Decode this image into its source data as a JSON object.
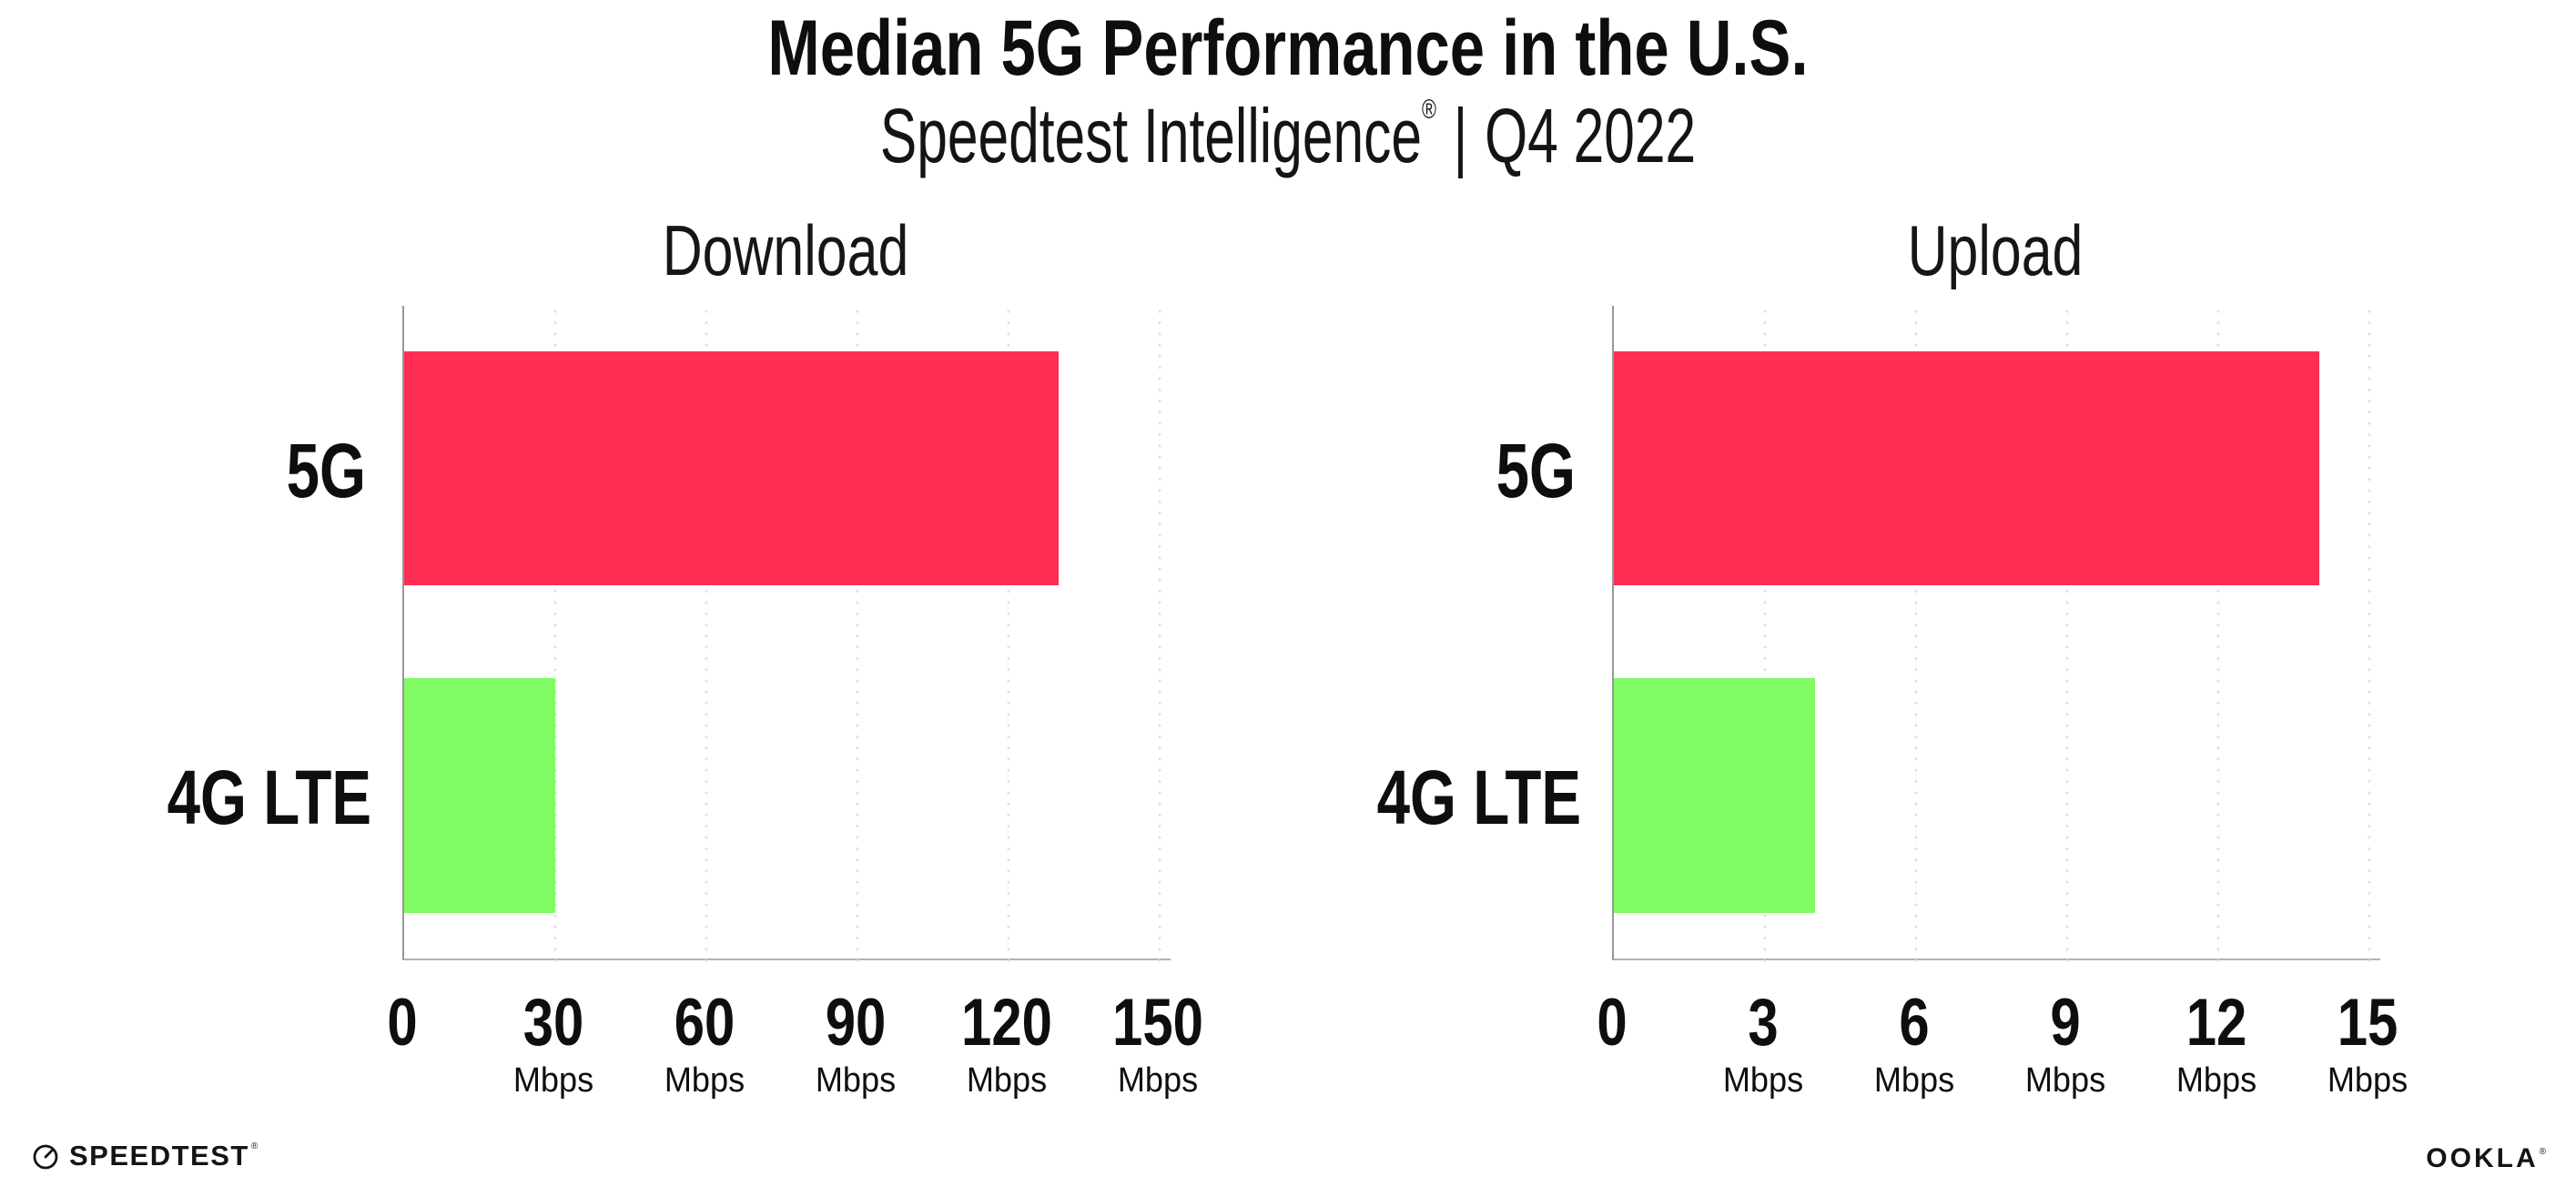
{
  "page": {
    "title": "Median 5G Performance in the U.S.",
    "subtitle": {
      "brand": "Speedtest Intelligence",
      "reg": "®",
      "separator": "|",
      "period": "Q4 2022"
    }
  },
  "colors": {
    "bar_5g": "#ff2e55",
    "bar_4g_lte": "#80fb64",
    "grid_dot": "#dedee9",
    "y_axis_line": "#97979d",
    "x_axis_line": "#b1b1b6",
    "text": "#0e0e0e"
  },
  "chart_data": [
    {
      "type": "bar",
      "orientation": "horizontal",
      "title": "Download",
      "categories": [
        "5G",
        "4G LTE"
      ],
      "values": [
        130,
        30
      ],
      "unit": "Mbps",
      "xlim": [
        0,
        150
      ],
      "xticks": [
        0,
        30,
        60,
        90,
        120,
        150
      ],
      "tick_unit_label": "Mbps",
      "grid": "dotted-vertical",
      "legend": "none",
      "bar_colors": [
        "#ff2e55",
        "#80fb64"
      ]
    },
    {
      "type": "bar",
      "orientation": "horizontal",
      "title": "Upload",
      "categories": [
        "5G",
        "4G LTE"
      ],
      "values": [
        14,
        4
      ],
      "unit": "Mbps",
      "xlim": [
        0,
        15
      ],
      "xticks": [
        0,
        3,
        6,
        9,
        12,
        15
      ],
      "tick_unit_label": "Mbps",
      "grid": "dotted-vertical",
      "legend": "none",
      "bar_colors": [
        "#ff2e55",
        "#80fb64"
      ]
    }
  ],
  "footer": {
    "speedtest_label": "SPEEDTEST",
    "speedtest_mark": "®",
    "ookla_label": "OOKLA",
    "ookla_mark": "®"
  }
}
